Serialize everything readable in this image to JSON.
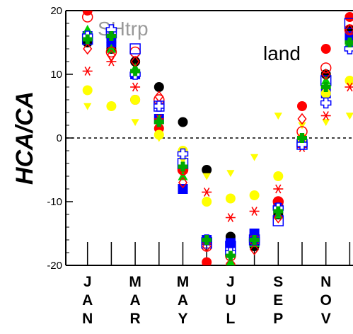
{
  "chart_data": {
    "type": "scatter",
    "title": "SHtrp",
    "annotation": "land",
    "ylabel": "HCA/CA",
    "ylim": [
      -20,
      20
    ],
    "yticks": [
      "20",
      "10",
      "0",
      "-10",
      "-20"
    ],
    "months": [
      {
        "letters": [
          "J",
          "A",
          "N"
        ]
      },
      {
        "letters": [
          "M",
          "A",
          "R"
        ]
      },
      {
        "letters": [
          "M",
          "A",
          "Y"
        ]
      },
      {
        "letters": [
          "J",
          "U",
          "L"
        ]
      },
      {
        "letters": [
          "S",
          "E",
          "P"
        ]
      },
      {
        "letters": [
          "N",
          "O",
          "V"
        ]
      }
    ],
    "reference_line": 0,
    "grid": false,
    "series": [
      {
        "color": "#ff0000",
        "marker": "circle",
        "values": [
          20,
          15,
          6,
          1.5,
          -5,
          -19.5,
          -20,
          -15,
          -10,
          5,
          14,
          19
        ]
      },
      {
        "color": "#000000",
        "marker": "circle",
        "values": [
          15,
          14,
          12,
          8,
          2.5,
          -5,
          -15.5,
          -17,
          -12,
          0,
          10,
          17
        ]
      },
      {
        "color": "#0000ff",
        "marker": "square",
        "values": [
          16,
          15,
          10,
          3,
          -8,
          -16,
          -16.5,
          -15,
          -11,
          -0.5,
          7,
          16
        ]
      },
      {
        "color": "#00cc00",
        "marker": "triangle",
        "values": [
          17,
          14,
          11,
          3,
          -6,
          -16,
          -19.5,
          -16.5,
          -12,
          0,
          9,
          15
        ]
      },
      {
        "color": "#ffff00",
        "marker": "circle",
        "values": [
          7.5,
          5,
          6,
          0.5,
          -2,
          -10,
          -9.5,
          -9,
          -6,
          0,
          7,
          9
        ]
      },
      {
        "color": "#ffff00",
        "marker": "triangle-down",
        "values": [
          5,
          5,
          2.5,
          0,
          -3.5,
          -6,
          -5.5,
          -3,
          3.5,
          2,
          2.5,
          3.5
        ]
      },
      {
        "color": "#ff0000",
        "marker": "asterisk",
        "values": [
          10.5,
          12,
          8,
          3,
          -5,
          -8.5,
          -12.5,
          -11.5,
          -8,
          -1.5,
          3.5,
          8
        ]
      },
      {
        "color": "#ff0000",
        "marker": "circle-open",
        "values": [
          19,
          13.5,
          13.5,
          6,
          -5,
          -17,
          -18.5,
          -16,
          -10,
          1,
          11,
          17
        ]
      },
      {
        "color": "#0000ff",
        "marker": "square-open",
        "values": [
          15.5,
          16.5,
          14,
          5,
          -4,
          -16.5,
          -17,
          -16,
          -13,
          -1,
          9,
          18
        ]
      },
      {
        "color": "#ff0000",
        "marker": "diamond-open",
        "values": [
          14,
          13,
          12,
          6.5,
          -7,
          -17,
          -18,
          -17.5,
          -12.5,
          3,
          10,
          17
        ]
      },
      {
        "color": "#0000ff",
        "marker": "cross-open",
        "values": [
          16,
          17,
          10,
          5,
          -2.5,
          -16,
          -18,
          -16,
          -11,
          -1,
          5.5,
          14
        ]
      },
      {
        "color": "#00aa00",
        "marker": "plus",
        "values": [
          15.5,
          16,
          10.5,
          2.5,
          -4.5,
          -16,
          -18.5,
          -16,
          -11.5,
          0,
          8,
          15
        ]
      }
    ]
  }
}
